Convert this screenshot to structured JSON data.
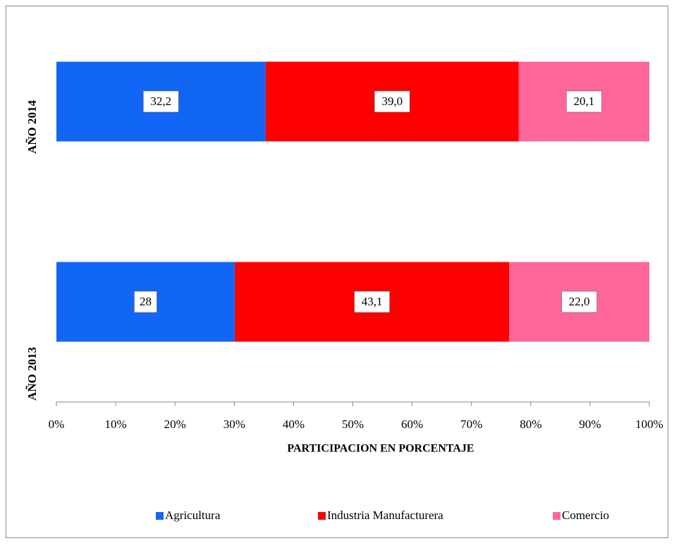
{
  "chart_data": {
    "type": "bar",
    "orientation": "horizontal",
    "stacking": "percent",
    "categories": [
      "AÑO 2013",
      "AÑO 2014"
    ],
    "series": [
      {
        "name": "Agricultura",
        "color": "#1166f6",
        "values": [
          28,
          32.2
        ],
        "value_labels": [
          "28",
          "32,2"
        ]
      },
      {
        "name": "Industria Manufacturera",
        "color": "#ff0000",
        "values": [
          43.1,
          39.0
        ],
        "value_labels": [
          "43,1",
          "39,0"
        ]
      },
      {
        "name": "Comercio",
        "color": "#ff6699",
        "values": [
          22.0,
          20.1
        ],
        "value_labels": [
          "22,0",
          "20,1"
        ]
      }
    ],
    "xlabel": "PARTICIPACION EN PORCENTAJE",
    "xlim": [
      0,
      100
    ],
    "xticks": [
      {
        "value": 0,
        "label": "0%"
      },
      {
        "value": 10,
        "label": "10%"
      },
      {
        "value": 20,
        "label": "20%"
      },
      {
        "value": 30,
        "label": "30%"
      },
      {
        "value": 40,
        "label": "40%"
      },
      {
        "value": 50,
        "label": "50%"
      },
      {
        "value": 60,
        "label": "60%"
      },
      {
        "value": 70,
        "label": "70%"
      },
      {
        "value": 80,
        "label": "80%"
      },
      {
        "value": 90,
        "label": "90%"
      },
      {
        "value": 100,
        "label": "100%"
      }
    ],
    "legend": "bottom"
  }
}
